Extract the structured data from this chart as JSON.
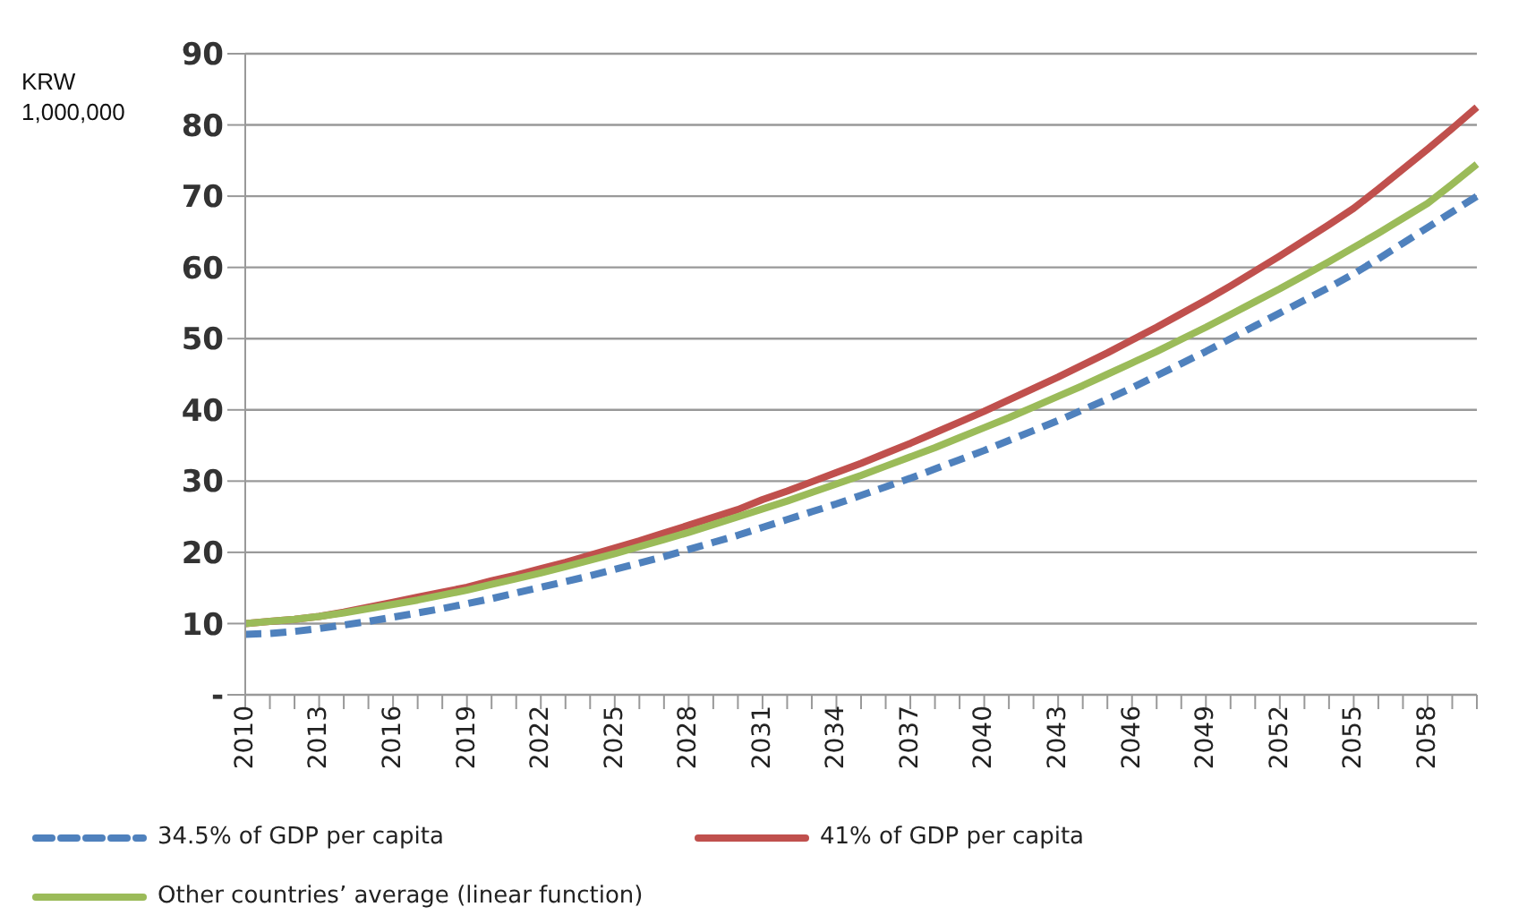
{
  "chart_data": {
    "type": "line",
    "ylabel": "KRW 1,000,000",
    "categories": [
      "2010",
      null,
      null,
      "2013",
      null,
      null,
      "2016",
      null,
      null,
      "2019",
      null,
      null,
      "2022",
      null,
      null,
      "2025",
      null,
      null,
      "2028",
      null,
      null,
      "2031",
      null,
      null,
      "2034",
      null,
      null,
      "2037",
      null,
      null,
      "2040",
      null,
      null,
      "2043",
      null,
      null,
      "2046",
      null,
      null,
      "2049",
      null,
      null,
      "2052",
      null,
      null,
      "2055",
      null,
      null,
      "2058",
      null,
      null
    ],
    "series": [
      {
        "name": "34.5% of GDP per capita",
        "color": "#4f81bd",
        "line_style": "dashed",
        "values": [
          8.5,
          8.6,
          8.9,
          9.3,
          9.8,
          10.3,
          10.9,
          11.5,
          12.1,
          12.8,
          13.5,
          14.3,
          15.1,
          15.9,
          16.7,
          17.6,
          18.5,
          19.4,
          20.4,
          21.4,
          22.4,
          23.5,
          24.6,
          25.7,
          26.8,
          28,
          29.2,
          30.4,
          31.7,
          33,
          34.3,
          35.7,
          37.1,
          38.5,
          40,
          41.5,
          43.1,
          44.8,
          46.5,
          48.2,
          50,
          51.8,
          53.6,
          55.4,
          57.2,
          59.1,
          61.2,
          63.4,
          65.6,
          67.8,
          70
        ]
      },
      {
        "name": "41% of GDP per capita",
        "color": "#c0504d",
        "line_style": "solid",
        "values": [
          10,
          10.3,
          10.6,
          11,
          11.6,
          12.3,
          13,
          13.7,
          14.4,
          15.1,
          16,
          16.8,
          17.7,
          18.6,
          19.6,
          20.6,
          21.6,
          22.7,
          23.8,
          24.9,
          26,
          27.4,
          28.6,
          29.9,
          31.2,
          32.5,
          33.9,
          35.3,
          36.8,
          38.3,
          39.8,
          41.4,
          43,
          44.6,
          46.3,
          48,
          49.8,
          51.6,
          53.5,
          55.4,
          57.4,
          59.5,
          61.6,
          63.8,
          66,
          68.3,
          71,
          73.8,
          76.6,
          79.5,
          82.5
        ]
      },
      {
        "name": "Other countries’ average (linear function)",
        "color": "#9bbb59",
        "line_style": "solid",
        "values": [
          10,
          10.3,
          10.6,
          11,
          11.5,
          12.1,
          12.7,
          13.3,
          14,
          14.7,
          15.5,
          16.3,
          17.1,
          18,
          18.9,
          19.8,
          20.8,
          21.8,
          22.8,
          23.9,
          25,
          26.1,
          27.2,
          28.4,
          29.6,
          30.8,
          32.1,
          33.4,
          34.7,
          36.1,
          37.5,
          38.9,
          40.4,
          41.9,
          43.4,
          45,
          46.6,
          48.2,
          49.9,
          51.6,
          53.4,
          55.2,
          57,
          58.9,
          60.8,
          62.8,
          64.8,
          66.9,
          69,
          71.7,
          74.5
        ]
      }
    ],
    "ylim": [
      0,
      90
    ],
    "yticks": [
      {
        "value": 0,
        "label": "-"
      },
      10,
      20,
      30,
      40,
      50,
      60,
      70,
      80,
      90
    ],
    "grid": "y",
    "legend": "bottom",
    "marker": "none"
  }
}
